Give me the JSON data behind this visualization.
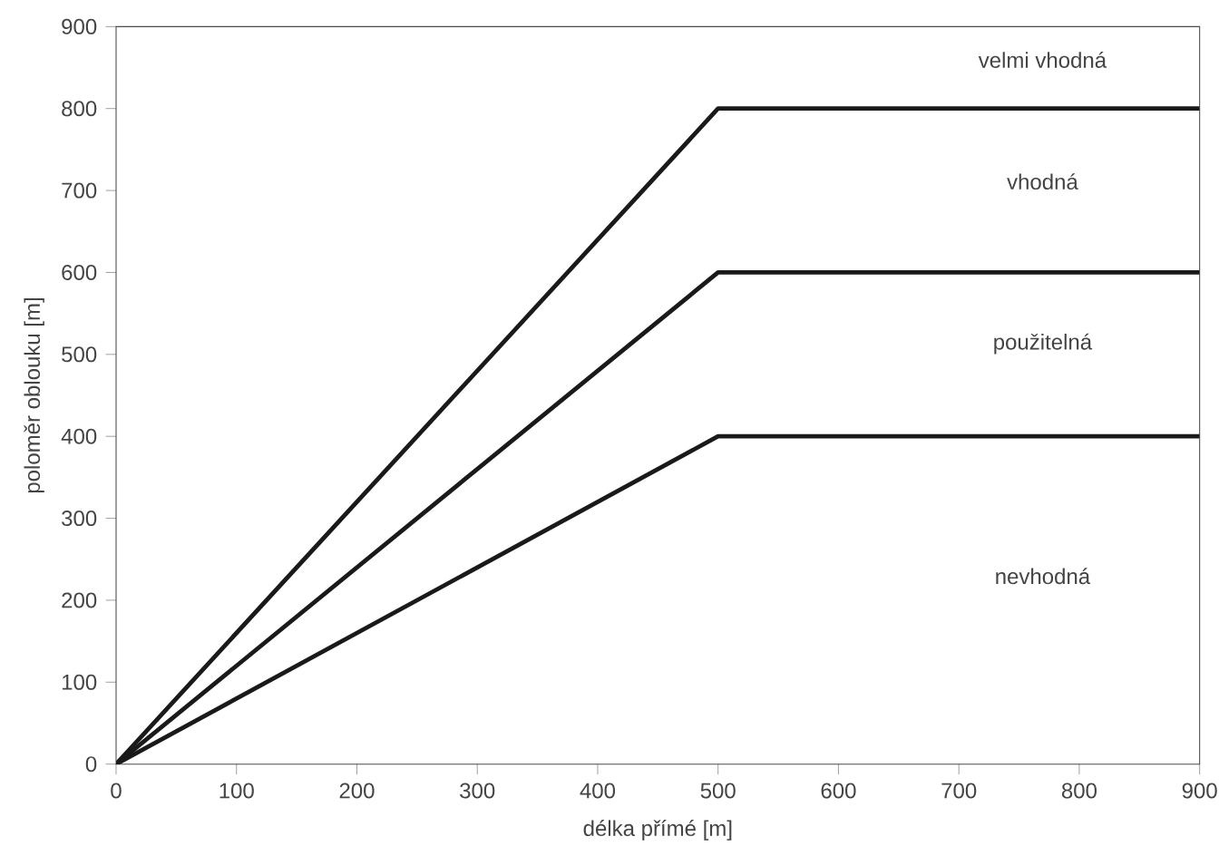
{
  "chart_data": {
    "type": "line",
    "xlabel": "délka přímé [m]",
    "ylabel": "poloměr oblouku [m]",
    "x": [
      0,
      500,
      900
    ],
    "series": [
      {
        "color": "#1a1a1a",
        "values": [
          0,
          800,
          800
        ]
      },
      {
        "color": "#1a1a1a",
        "values": [
          0,
          600,
          600
        ]
      },
      {
        "color": "#1a1a1a",
        "values": [
          0,
          400,
          400
        ]
      }
    ],
    "xlim": [
      0,
      900
    ],
    "ylim": [
      0,
      900
    ],
    "xticks": [
      0,
      100,
      200,
      300,
      400,
      500,
      600,
      700,
      800,
      900
    ],
    "yticks": [
      0,
      100,
      200,
      300,
      400,
      500,
      600,
      700,
      800,
      900
    ],
    "annotations": [
      "velmi vhodná",
      "vhodná",
      "použitelná",
      "nevhodná"
    ],
    "grid": false,
    "marker": "none",
    "line_style": "solid"
  }
}
